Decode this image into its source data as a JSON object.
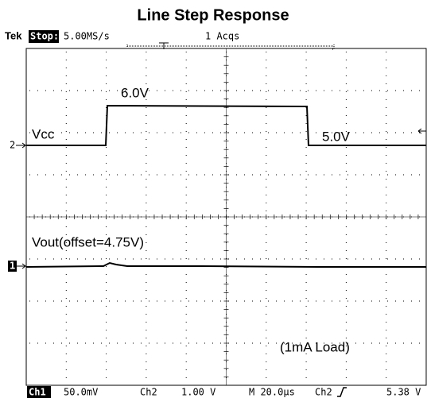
{
  "title": "Line Step Response",
  "header": {
    "brand": "Tek",
    "state": "Stop:",
    "rate": "5.00MS/s",
    "acqs": "1 Acqs"
  },
  "labels": {
    "high": "6.0V",
    "vcc": "Vcc",
    "low": "5.0V",
    "vout": "Vout(offset=4.75V)",
    "load": "(1mA Load)"
  },
  "markers": {
    "ch2": "2",
    "ch1": "1"
  },
  "footer": {
    "ch1": "Ch1",
    "ch1_scale": "50.0mV",
    "ch2": "Ch2",
    "ch2_scale": "1.00 V",
    "time": "M 20.0µs",
    "trigger": "Ch2",
    "trigger_level": "5.38 V"
  }
}
